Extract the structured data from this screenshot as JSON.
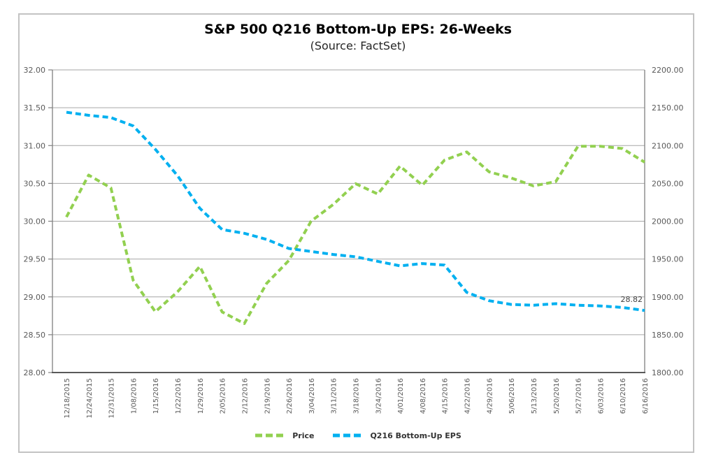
{
  "header": {
    "title": "S&P 500 Q216 Bottom-Up EPS: 26-Weeks",
    "subtitle": "(Source: FactSet)"
  },
  "colors": {
    "price_line": "#92D050",
    "eps_line": "#00B0F0",
    "gridline": "#A6A6A6",
    "axis_line": "#808080",
    "x_axis_line": "#595959",
    "axis_text": "#595959"
  },
  "chart_data": {
    "type": "line",
    "title": "S&P 500 Q216 Bottom-Up EPS: 26-Weeks",
    "subtitle": "(Source: FactSet)",
    "grid": true,
    "legend_position": "bottom",
    "categories": [
      "12/18/2015",
      "12/24/2015",
      "12/31/2015",
      "1/08/2016",
      "1/15/2016",
      "1/22/2016",
      "1/29/2016",
      "2/05/2016",
      "2/12/2016",
      "2/19/2016",
      "2/26/2016",
      "3/04/2016",
      "3/11/2016",
      "3/18/2016",
      "3/24/2016",
      "4/01/2016",
      "4/08/2016",
      "4/15/2016",
      "4/22/2016",
      "4/29/2016",
      "5/06/2016",
      "5/13/2016",
      "5/20/2016",
      "5/27/2016",
      "6/03/2016",
      "6/10/2016",
      "6/16/2016"
    ],
    "left_axis": {
      "min": 28,
      "max": 32,
      "step": 0.5,
      "tick_labels": [
        "32.00",
        "31.50",
        "31.00",
        "30.50",
        "30.00",
        "29.50",
        "29.00",
        "28.50",
        "28.00"
      ]
    },
    "right_axis": {
      "min": 1800,
      "max": 2200,
      "step": 50,
      "tick_labels": [
        "2200.00",
        "2150.00",
        "2100.00",
        "2050.00",
        "2000.00",
        "1950.00",
        "1900.00",
        "1850.00",
        "1800.00"
      ]
    },
    "series": [
      {
        "id": "price",
        "name": "Price",
        "axis": "right",
        "color": "#92D050",
        "values": [
          2005.55,
          2060.99,
          2043.94,
          1922.03,
          1880.33,
          1906.9,
          1940.24,
          1880.05,
          1864.78,
          1917.78,
          1948.05,
          1999.99,
          2022.19,
          2049.58,
          2035.94,
          2072.78,
          2047.6,
          2080.73,
          2091.58,
          2065.3,
          2057.14,
          2046.61,
          2052.32,
          2099.06,
          2099.13,
          2096.07,
          2077.99
        ]
      },
      {
        "id": "eps",
        "name": "Q216 Bottom-Up EPS",
        "axis": "left",
        "color": "#00B0F0",
        "end_label": "28.82",
        "values": [
          31.44,
          31.4,
          31.37,
          31.26,
          30.95,
          30.6,
          30.17,
          29.89,
          29.84,
          29.76,
          29.64,
          29.6,
          29.56,
          29.53,
          29.47,
          29.41,
          29.44,
          29.42,
          29.06,
          28.95,
          28.9,
          28.89,
          28.91,
          28.89,
          28.88,
          28.86,
          28.82
        ]
      }
    ]
  }
}
